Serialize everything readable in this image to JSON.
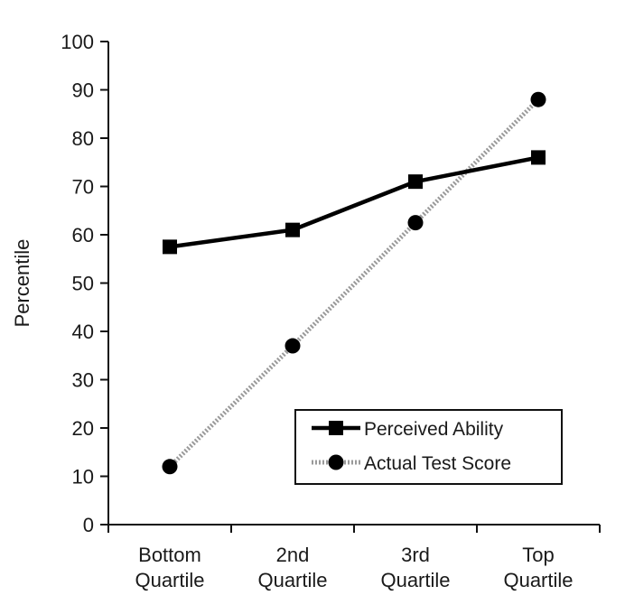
{
  "chart_data": {
    "type": "line",
    "title": "",
    "xlabel": "",
    "ylabel": "Percentile",
    "ylim": [
      0,
      100
    ],
    "yticks": [
      0,
      10,
      20,
      30,
      40,
      50,
      60,
      70,
      80,
      90,
      100
    ],
    "grid": false,
    "legend_position": "bottom-right",
    "categories": [
      [
        "Bottom",
        "Quartile"
      ],
      [
        "2nd",
        "Quartile"
      ],
      [
        "3rd",
        "Quartile"
      ],
      [
        "Top",
        "Quartile"
      ]
    ],
    "series": [
      {
        "name": "Perceived Ability",
        "values": [
          57.5,
          61,
          71,
          76
        ],
        "marker": "square",
        "color": "#000000",
        "line_style": "solid"
      },
      {
        "name": "Actual Test Score",
        "values": [
          12,
          37,
          62.5,
          88
        ],
        "marker": "circle",
        "color": "#9a9a9a",
        "line_style": "dotted"
      }
    ]
  }
}
